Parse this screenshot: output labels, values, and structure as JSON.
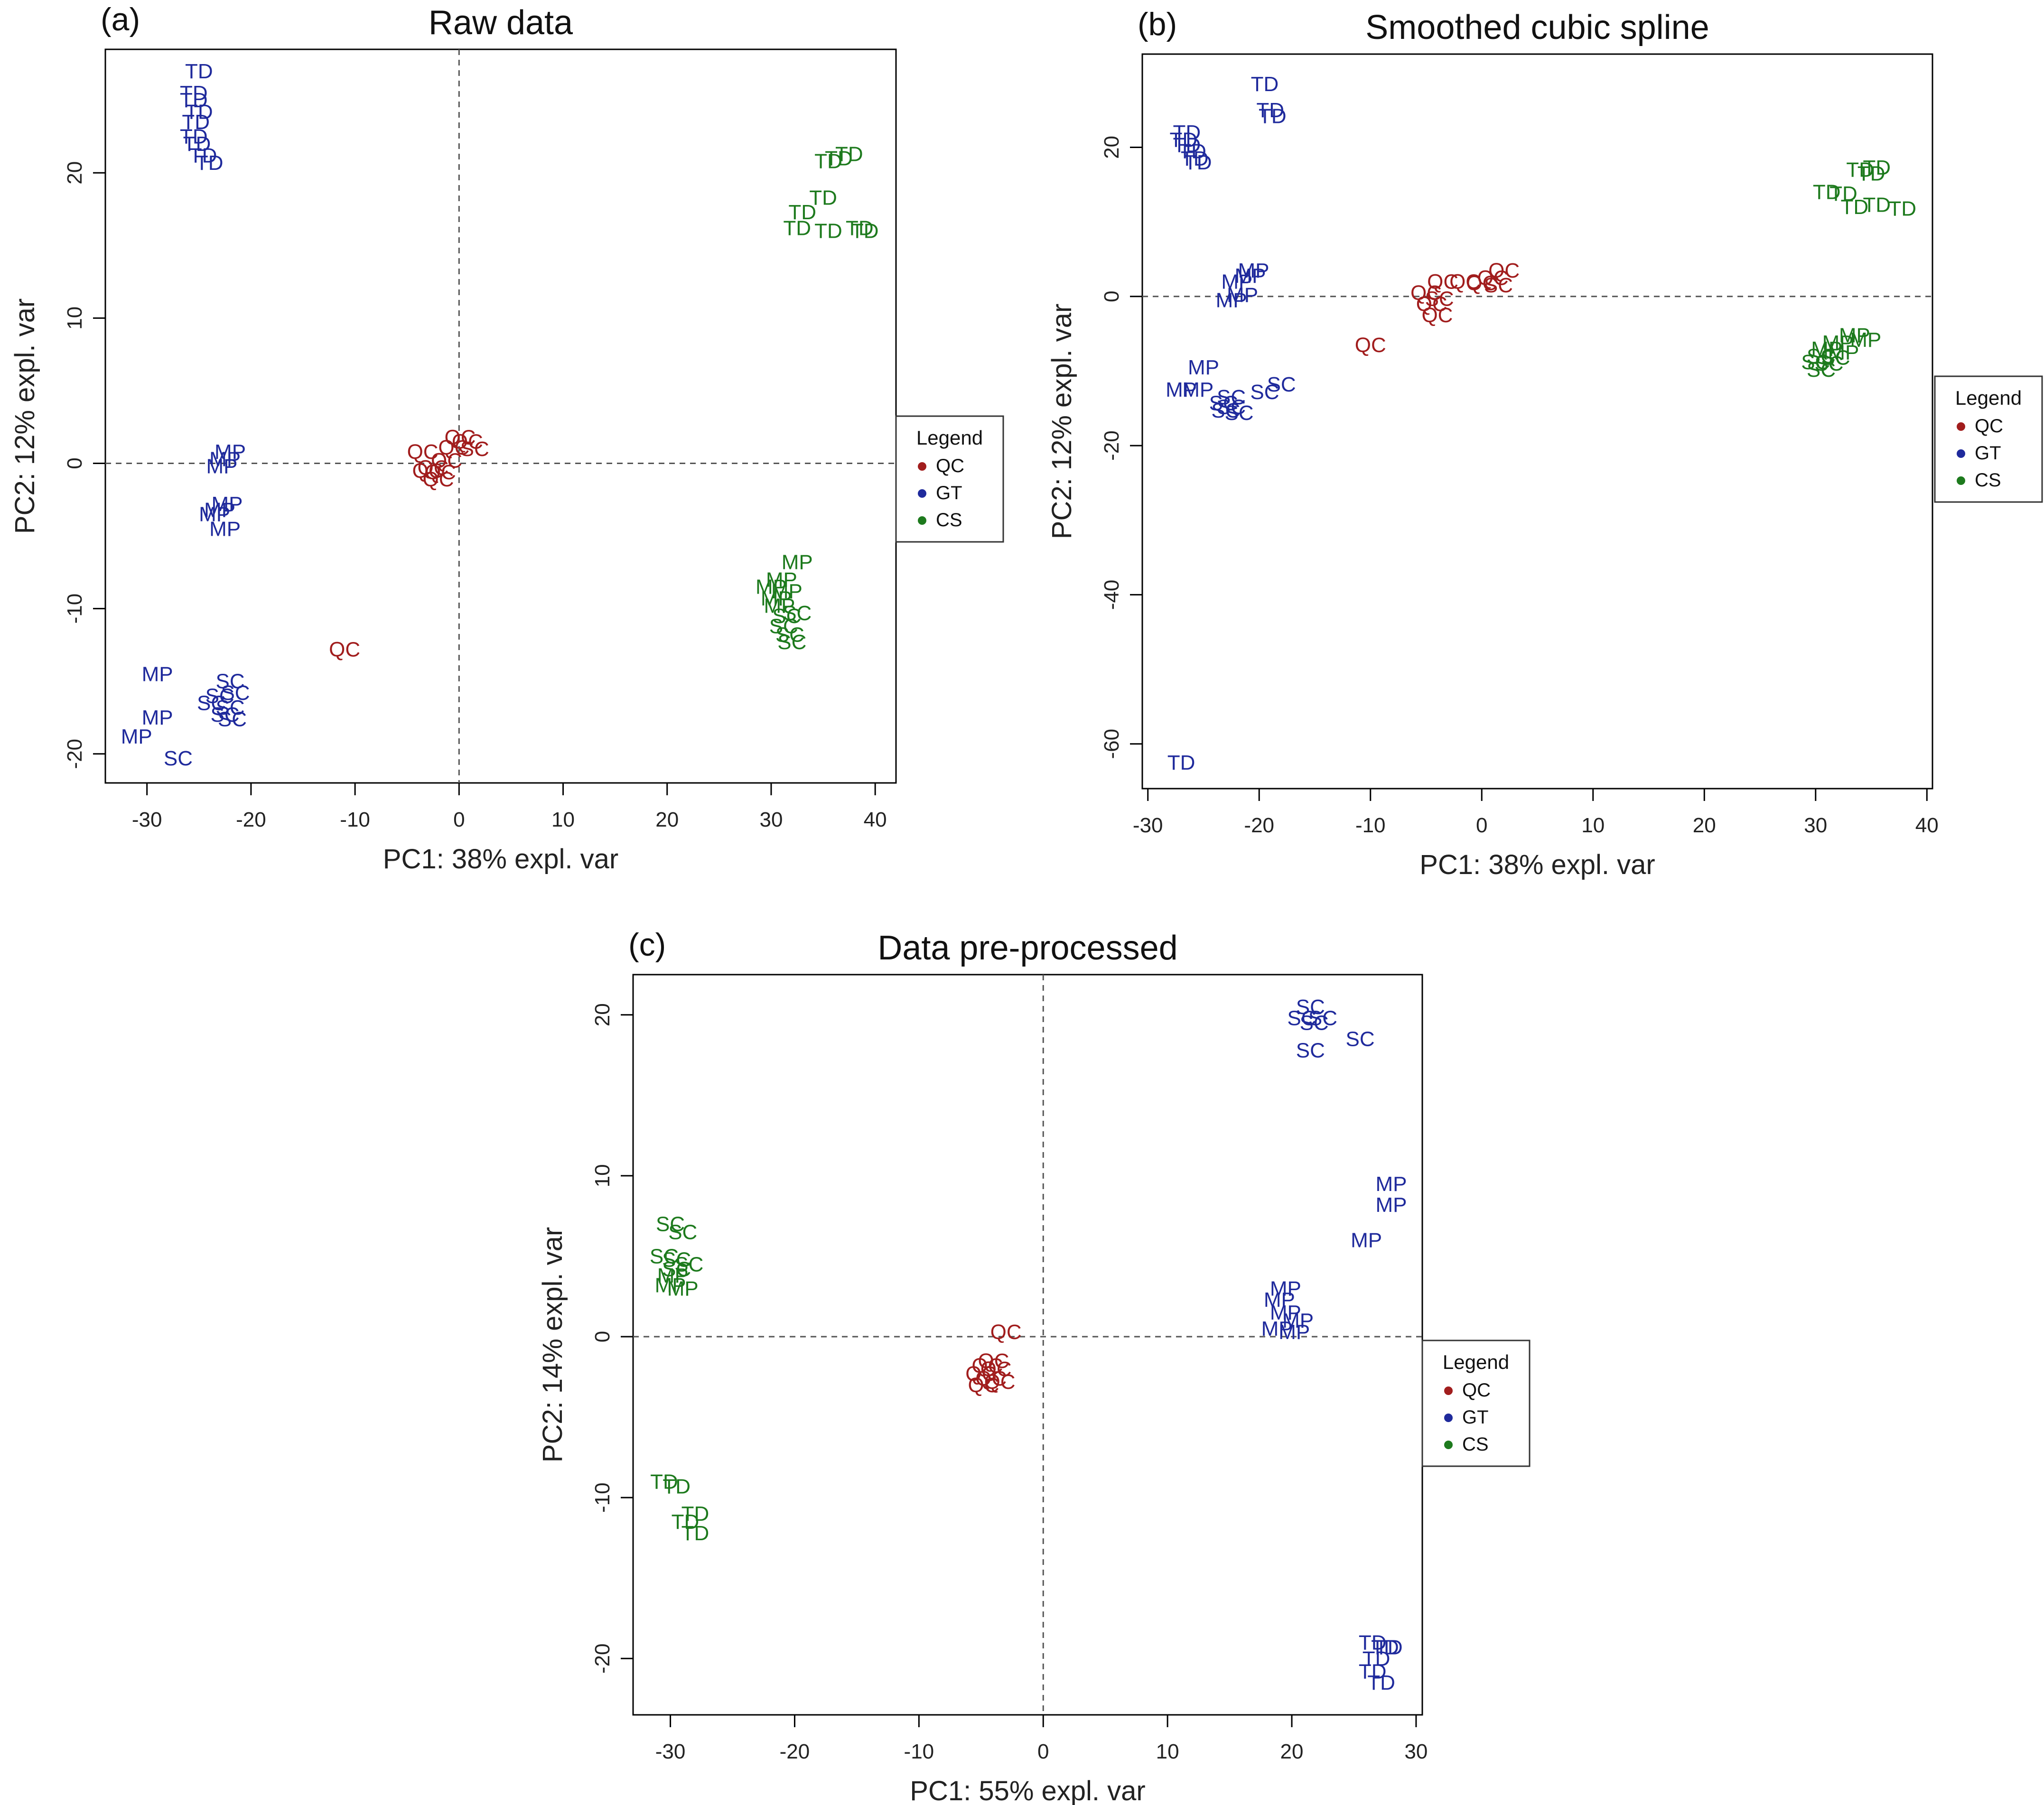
{
  "figure": {
    "colors": {
      "QC": "#a11d1d",
      "GT": "#1f2a9c",
      "CS": "#1d7a1d",
      "axis": "#000000",
      "refline": "#555555"
    }
  },
  "chart_data": [
    {
      "id": "a",
      "type": "scatter",
      "panel_label": "(a)",
      "title": "Raw data",
      "xlabel": "PC1: 38% expl. var",
      "ylabel": "PC2: 12% expl. var",
      "xlim": [
        -34,
        42
      ],
      "ylim": [
        -22,
        28.5
      ],
      "xticks": [
        -30,
        -20,
        -10,
        0,
        10,
        20,
        30,
        40
      ],
      "yticks": [
        -20,
        -10,
        0,
        10,
        20
      ],
      "zero_lines": {
        "vertical_x": 0,
        "horizontal_y": 0
      },
      "grid": false,
      "legend": {
        "title": "Legend",
        "position": "right-center",
        "entries": [
          "QC",
          "GT",
          "CS"
        ]
      },
      "series": [
        {
          "name": "QC",
          "points": [
            [
              -3.5,
              0.8,
              "QC"
            ],
            [
              -2.5,
              -0.3,
              "QC"
            ],
            [
              -1.2,
              0.2,
              "QC"
            ],
            [
              -0.5,
              1.1,
              "QC"
            ],
            [
              0.8,
              1.5,
              "QC"
            ],
            [
              1.5,
              1.0,
              "SC"
            ],
            [
              -2.0,
              -1.1,
              "QC"
            ],
            [
              -3.0,
              -0.5,
              "QC"
            ],
            [
              0.1,
              1.8,
              "QC"
            ],
            [
              -1.8,
              -0.6,
              "QC"
            ],
            [
              -11,
              -12.8,
              "QC"
            ]
          ]
        },
        {
          "name": "GT",
          "points": [
            [
              -25,
              27,
              "TD"
            ],
            [
              -25.5,
              25.5,
              "TD"
            ],
            [
              -25.5,
              25.0,
              "TD"
            ],
            [
              -25.0,
              24.2,
              "TD"
            ],
            [
              -25.3,
              23.5,
              "TD"
            ],
            [
              -25.5,
              22.5,
              "TD"
            ],
            [
              -25.2,
              22.0,
              "TD"
            ],
            [
              -24.6,
              21.2,
              "TD"
            ],
            [
              -24.0,
              20.7,
              "TD"
            ],
            [
              -22.0,
              0.8,
              "MP"
            ],
            [
              -22.5,
              0.3,
              "MP"
            ],
            [
              -22.8,
              -0.2,
              "MP"
            ],
            [
              -22.3,
              -2.8,
              "MP"
            ],
            [
              -23.0,
              -3.2,
              "MP"
            ],
            [
              -23.5,
              -3.5,
              "MP"
            ],
            [
              -22.5,
              -4.5,
              "MP"
            ],
            [
              -29.0,
              -14.5,
              "MP"
            ],
            [
              -29.0,
              -17.5,
              "MP"
            ],
            [
              -31.0,
              -18.8,
              "MP"
            ],
            [
              -27.0,
              -20.3,
              "SC"
            ],
            [
              -22.0,
              -15.0,
              "SC"
            ],
            [
              -21.5,
              -15.8,
              "SC"
            ],
            [
              -23.0,
              -16.0,
              "SC"
            ],
            [
              -23.8,
              -16.5,
              "SC"
            ],
            [
              -22.0,
              -16.8,
              "SC"
            ],
            [
              -22.5,
              -17.3,
              "SC"
            ],
            [
              -21.8,
              -17.6,
              "SC"
            ]
          ]
        },
        {
          "name": "CS",
          "points": [
            [
              36.5,
              21.0,
              "TD"
            ],
            [
              37.5,
              21.3,
              "TD"
            ],
            [
              35.5,
              20.8,
              "TD"
            ],
            [
              35.0,
              18.3,
              "TD"
            ],
            [
              33.0,
              17.3,
              "TD"
            ],
            [
              32.5,
              16.2,
              "TD"
            ],
            [
              35.5,
              16.0,
              "TD"
            ],
            [
              38.5,
              16.2,
              "TD"
            ],
            [
              39.0,
              16.0,
              "TD"
            ],
            [
              32.5,
              -6.8,
              "MP"
            ],
            [
              31.0,
              -8.0,
              "MP"
            ],
            [
              30.0,
              -8.5,
              "MP"
            ],
            [
              31.5,
              -8.8,
              "MP"
            ],
            [
              30.5,
              -9.3,
              "MP"
            ],
            [
              30.8,
              -9.8,
              "MP"
            ],
            [
              31.5,
              -10.5,
              "SC"
            ],
            [
              32.5,
              -10.3,
              "SC"
            ],
            [
              31.2,
              -11.2,
              "SC"
            ],
            [
              31.8,
              -11.8,
              "SC"
            ],
            [
              32.0,
              -12.3,
              "SC"
            ]
          ]
        }
      ]
    },
    {
      "id": "b",
      "type": "scatter",
      "panel_label": "(b)",
      "title": "Smoothed cubic spline",
      "xlabel": "PC1: 38% expl. var",
      "ylabel": "PC2: 12% expl. var",
      "xlim": [
        -30.5,
        40.5
      ],
      "ylim": [
        -66,
        32.5
      ],
      "xticks": [
        -30,
        -20,
        -10,
        0,
        10,
        20,
        30,
        40
      ],
      "yticks": [
        -60,
        -40,
        -20,
        0,
        20
      ],
      "zero_lines": {
        "vertical_x": null,
        "horizontal_y": 0
      },
      "grid": false,
      "legend": {
        "title": "Legend",
        "position": "right-center",
        "entries": [
          "QC",
          "GT",
          "CS"
        ]
      },
      "series": [
        {
          "name": "QC",
          "points": [
            [
              -5.0,
              0.5,
              "QC"
            ],
            [
              -4.5,
              -1.0,
              "QC"
            ],
            [
              -3.5,
              2.0,
              "QC"
            ],
            [
              -1.5,
              2.0,
              "QC"
            ],
            [
              0.0,
              1.8,
              "QC"
            ],
            [
              1.0,
              2.5,
              "QC"
            ],
            [
              2.0,
              3.5,
              "QC"
            ],
            [
              1.5,
              1.5,
              "SC"
            ],
            [
              -3.8,
              -0.3,
              "SC"
            ],
            [
              -4.0,
              -2.5,
              "QC"
            ],
            [
              -10.0,
              -6.5,
              "QC"
            ]
          ]
        },
        {
          "name": "GT",
          "points": [
            [
              -19.5,
              28.5,
              "TD"
            ],
            [
              -19.0,
              25.0,
              "TD"
            ],
            [
              -18.8,
              24.2,
              "TD"
            ],
            [
              -26.5,
              22.0,
              "TD"
            ],
            [
              -26.8,
              21.0,
              "TD"
            ],
            [
              -26.5,
              20.3,
              "TD"
            ],
            [
              -26.0,
              19.5,
              "TD"
            ],
            [
              -25.8,
              18.5,
              "TD"
            ],
            [
              -25.5,
              18.0,
              "TD"
            ],
            [
              -20.5,
              3.5,
              "MP"
            ],
            [
              -20.8,
              2.8,
              "MP"
            ],
            [
              -22.0,
              2.0,
              "MP"
            ],
            [
              -21.5,
              0.2,
              "MP"
            ],
            [
              -22.5,
              -0.5,
              "MP"
            ],
            [
              -25.0,
              -9.5,
              "MP"
            ],
            [
              -27.0,
              -12.5,
              "MP"
            ],
            [
              -25.5,
              -12.5,
              "MP"
            ],
            [
              -18.0,
              -11.8,
              "SC"
            ],
            [
              -19.5,
              -12.8,
              "SC"
            ],
            [
              -22.5,
              -13.5,
              "SC"
            ],
            [
              -23.2,
              -14.3,
              "SC"
            ],
            [
              -22.5,
              -14.8,
              "SC"
            ],
            [
              -23.0,
              -15.3,
              "SC"
            ],
            [
              -21.8,
              -15.6,
              "SC"
            ],
            [
              -27.0,
              -62.5,
              "TD"
            ]
          ]
        },
        {
          "name": "CS",
          "points": [
            [
              34.0,
              17.0,
              "TD"
            ],
            [
              35.5,
              17.3,
              "TD"
            ],
            [
              35.0,
              16.5,
              "TD"
            ],
            [
              31.0,
              14.0,
              "TD"
            ],
            [
              32.5,
              13.8,
              "TD"
            ],
            [
              33.5,
              12.0,
              "TD"
            ],
            [
              35.5,
              12.3,
              "TD"
            ],
            [
              37.8,
              11.8,
              "TD"
            ],
            [
              33.5,
              -5.2,
              "MP"
            ],
            [
              34.5,
              -5.8,
              "MP"
            ],
            [
              32.0,
              -6.2,
              "MP"
            ],
            [
              31.0,
              -7.0,
              "MP"
            ],
            [
              30.5,
              -8.0,
              "SC"
            ],
            [
              30.0,
              -8.8,
              "SC"
            ],
            [
              31.2,
              -9.0,
              "SC"
            ],
            [
              30.5,
              -9.8,
              "SC"
            ],
            [
              31.8,
              -8.2,
              "SC"
            ],
            [
              32.5,
              -7.5,
              "MP"
            ]
          ]
        }
      ]
    },
    {
      "id": "c",
      "type": "scatter",
      "panel_label": "(c)",
      "title": "Data pre-processed",
      "xlabel": "PC1: 55% expl. var",
      "ylabel": "PC2: 14% expl. var",
      "xlim": [
        -33,
        30.5
      ],
      "ylim": [
        -23.5,
        22.5
      ],
      "xticks": [
        -30,
        -20,
        -10,
        0,
        10,
        20,
        30
      ],
      "yticks": [
        -20,
        -10,
        0,
        10,
        20
      ],
      "zero_lines": {
        "vertical_x": 0,
        "horizontal_y": 0
      },
      "grid": false,
      "legend": {
        "title": "Legend",
        "position": "right-center",
        "entries": [
          "QC",
          "GT",
          "CS"
        ]
      },
      "series": [
        {
          "name": "QC",
          "points": [
            [
              -3.0,
              0.3,
              "QC"
            ],
            [
              -4.5,
              -1.8,
              "QC"
            ],
            [
              -3.8,
              -2.0,
              "QC"
            ],
            [
              -5.0,
              -2.3,
              "QC"
            ],
            [
              -4.2,
              -2.6,
              "QC"
            ],
            [
              -4.8,
              -3.0,
              "QC"
            ],
            [
              -3.5,
              -2.8,
              "QC"
            ],
            [
              -4.0,
              -1.5,
              "QC"
            ]
          ]
        },
        {
          "name": "GT",
          "points": [
            [
              21.5,
              20.5,
              "SC"
            ],
            [
              20.8,
              19.8,
              "SC"
            ],
            [
              21.8,
              19.5,
              "SC"
            ],
            [
              22.5,
              19.8,
              "SC"
            ],
            [
              21.5,
              17.8,
              "SC"
            ],
            [
              25.5,
              18.5,
              "SC"
            ],
            [
              28.0,
              9.5,
              "MP"
            ],
            [
              28.0,
              8.2,
              "MP"
            ],
            [
              26.0,
              6.0,
              "MP"
            ],
            [
              19.5,
              3.0,
              "MP"
            ],
            [
              19.0,
              2.3,
              "MP"
            ],
            [
              19.5,
              1.5,
              "MP"
            ],
            [
              20.5,
              1.0,
              "MP"
            ],
            [
              18.8,
              0.5,
              "MP"
            ],
            [
              20.2,
              0.3,
              "MP"
            ],
            [
              26.5,
              -19.0,
              "TD"
            ],
            [
              27.5,
              -19.3,
              "TD"
            ],
            [
              26.8,
              -20.0,
              "TD"
            ],
            [
              26.5,
              -20.8,
              "TD"
            ],
            [
              27.2,
              -21.5,
              "TD"
            ],
            [
              27.8,
              -19.3,
              "TD"
            ]
          ]
        },
        {
          "name": "CS",
          "points": [
            [
              -30.0,
              7.0,
              "SC"
            ],
            [
              -29.0,
              6.5,
              "SC"
            ],
            [
              -30.5,
              5.0,
              "SC"
            ],
            [
              -29.5,
              4.8,
              "SC"
            ],
            [
              -28.5,
              4.5,
              "SC"
            ],
            [
              -29.8,
              3.8,
              "MP"
            ],
            [
              -30.0,
              3.2,
              "MP"
            ],
            [
              -29.0,
              3.0,
              "MP"
            ],
            [
              -29.5,
              4.2,
              "SC"
            ],
            [
              -30.5,
              -9.0,
              "TD"
            ],
            [
              -29.5,
              -9.3,
              "TD"
            ],
            [
              -28.0,
              -11.0,
              "TD"
            ],
            [
              -28.8,
              -11.5,
              "TD"
            ],
            [
              -28.0,
              -12.2,
              "TD"
            ]
          ]
        }
      ]
    }
  ]
}
